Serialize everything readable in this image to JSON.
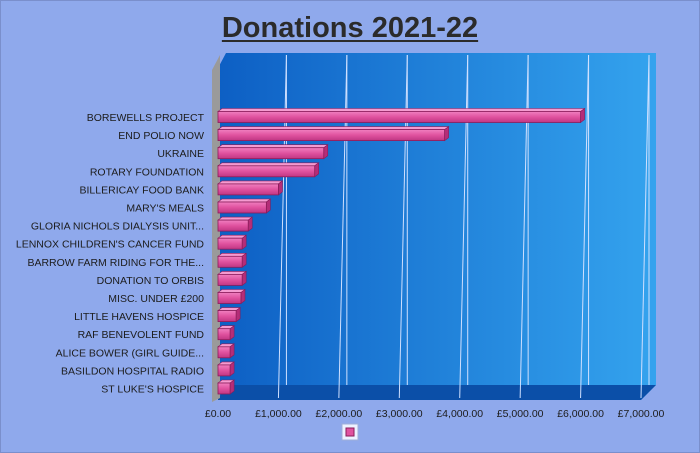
{
  "chart_data": {
    "type": "bar",
    "orientation": "horizontal",
    "title": "Donations 2021-22",
    "categories": [
      "BOREWELLS PROJECT",
      "END POLIO NOW",
      "UKRAINE",
      "ROTARY FOUNDATION",
      "BILLERICAY FOOD BANK",
      "MARY'S MEALS",
      "GLORIA NICHOLS DIALYSIS UNIT...",
      "LENNOX CHILDREN'S CANCER FUND",
      "BARROW FARM RIDING FOR THE...",
      "DONATION TO ORBIS",
      "MISC. UNDER £200",
      "LITTLE HAVENS HOSPICE",
      "RAF BENEVOLENT FUND",
      "ALICE BOWER (GIRL GUIDE...",
      "BASILDON HOSPITAL RADIO",
      "ST LUKE'S HOSPICE"
    ],
    "values": [
      6000,
      3750,
      1750,
      1600,
      1000,
      800,
      500,
      400,
      400,
      400,
      380,
      300,
      200,
      200,
      200,
      200
    ],
    "xlim": [
      0,
      7000
    ],
    "x_ticks": [
      "£0.00",
      "£1,000.00",
      "£2,000.00",
      "£3,000.00",
      "£4,000.00",
      "£5,000.00",
      "£6,000.00",
      "£7,000.00"
    ],
    "grid": true,
    "legend": "bottom",
    "colors": {
      "bar": "#e0529f",
      "bar_edge": "#8a1c5a",
      "plot_bg_left": "#0d5fc4",
      "plot_bg_right": "#34a3ee",
      "page_bg": "#8fa9ec"
    }
  }
}
